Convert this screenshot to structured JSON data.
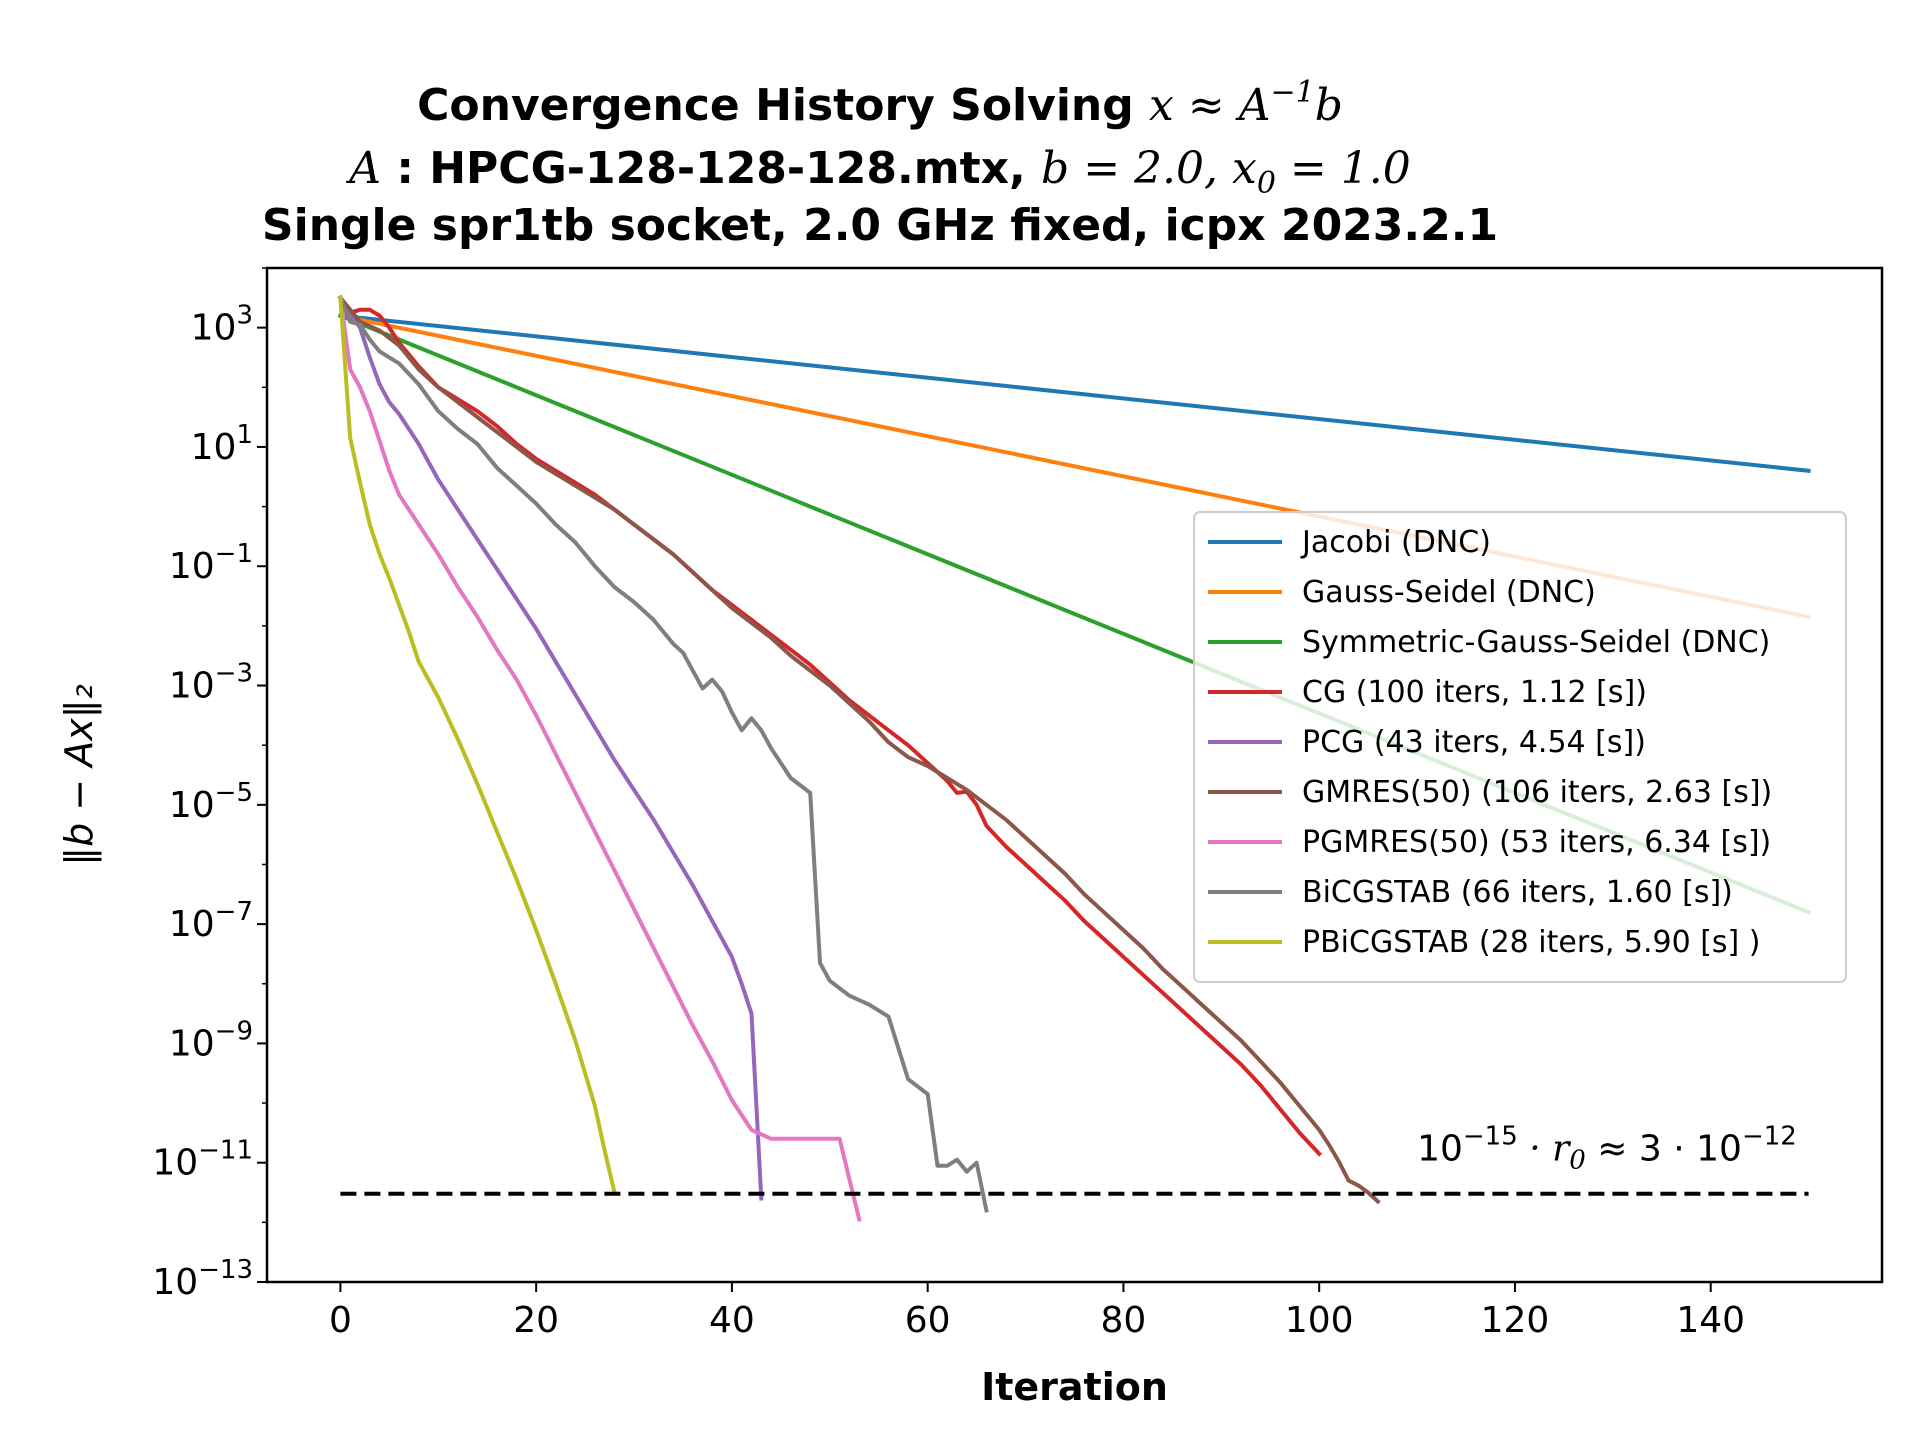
{
  "chart_data": {
    "type": "line",
    "title": {
      "line1_text": "Convergence History Solving ",
      "line1_math": "x ≈ A",
      "line1_sup": "−1",
      "line1_math_end": "b",
      "line2_A": "A",
      "line2_text": " : HPCG-128-128-128.mtx, ",
      "line2_b": "b",
      "line2_bval": " = 2.0, ",
      "line2_x": "x",
      "line2_xsub": "0",
      "line2_xval": " = 1.0",
      "line3": "Single spr1tb socket, 2.0 GHz fixed, icpx 2023.2.1"
    },
    "xlabel": "Iteration",
    "ylabel": "‖b − Ax‖₂",
    "xlim": [
      -7.5,
      157.5
    ],
    "ylim_log10": [
      -13,
      4
    ],
    "yscale": "log",
    "xticks": [
      0,
      20,
      40,
      60,
      80,
      100,
      120,
      140
    ],
    "yticks_exp": [
      3,
      1,
      -1,
      -3,
      -5,
      -7,
      -9,
      -11,
      -13
    ],
    "legend_position": "center-right",
    "annotation": {
      "base": "10",
      "exp": "−15",
      "mid": " · r",
      "sub": "0",
      "rest": " ≈ 3 · 10",
      "exp2": "−12",
      "x": 110,
      "log10y": -11
    },
    "threshold": {
      "log10y": -11.52,
      "x_start": 0,
      "x_end": 150,
      "color": "#000000",
      "style": "dashed"
    },
    "series": [
      {
        "name": "Jacobi (DNC)",
        "color": "#1f77b4",
        "points": [
          [
            0,
            3.2
          ],
          [
            150,
            0.6
          ]
        ]
      },
      {
        "name": "Gauss-Seidel (DNC)",
        "color": "#ff7f0e",
        "points": [
          [
            0,
            3.2
          ],
          [
            150,
            -1.85
          ]
        ]
      },
      {
        "name": "Symmetric-Gauss-Seidel (DNC)",
        "color": "#2ca02c",
        "points": [
          [
            0,
            3.2
          ],
          [
            150,
            -6.8
          ]
        ]
      },
      {
        "name": "CG (100 iters, 1.12 [s])",
        "color": "#d62728",
        "points": [
          [
            0,
            3.5
          ],
          [
            1,
            3.25
          ],
          [
            2,
            3.3
          ],
          [
            3,
            3.3
          ],
          [
            4,
            3.2
          ],
          [
            5,
            3.0
          ],
          [
            6,
            2.75
          ],
          [
            8,
            2.35
          ],
          [
            10,
            2.0
          ],
          [
            12,
            1.8
          ],
          [
            14,
            1.6
          ],
          [
            16,
            1.35
          ],
          [
            18,
            1.05
          ],
          [
            20,
            0.8
          ],
          [
            22,
            0.6
          ],
          [
            24,
            0.4
          ],
          [
            26,
            0.2
          ],
          [
            28,
            -0.05
          ],
          [
            30,
            -0.3
          ],
          [
            32,
            -0.55
          ],
          [
            34,
            -0.8
          ],
          [
            36,
            -1.1
          ],
          [
            38,
            -1.4
          ],
          [
            40,
            -1.65
          ],
          [
            42,
            -1.9
          ],
          [
            44,
            -2.15
          ],
          [
            46,
            -2.4
          ],
          [
            48,
            -2.65
          ],
          [
            50,
            -2.95
          ],
          [
            52,
            -3.25
          ],
          [
            54,
            -3.5
          ],
          [
            56,
            -3.75
          ],
          [
            58,
            -4.0
          ],
          [
            60,
            -4.3
          ],
          [
            62,
            -4.6
          ],
          [
            63,
            -4.8
          ],
          [
            64,
            -4.78
          ],
          [
            65,
            -5.0
          ],
          [
            66,
            -5.35
          ],
          [
            68,
            -5.7
          ],
          [
            70,
            -6.0
          ],
          [
            72,
            -6.3
          ],
          [
            74,
            -6.6
          ],
          [
            76,
            -6.95
          ],
          [
            78,
            -7.25
          ],
          [
            80,
            -7.55
          ],
          [
            82,
            -7.85
          ],
          [
            84,
            -8.15
          ],
          [
            86,
            -8.45
          ],
          [
            88,
            -8.75
          ],
          [
            90,
            -9.05
          ],
          [
            92,
            -9.35
          ],
          [
            94,
            -9.7
          ],
          [
            96,
            -10.1
          ],
          [
            98,
            -10.5
          ],
          [
            100,
            -10.85
          ]
        ]
      },
      {
        "name": "PCG (43 iters, 4.54 [s])",
        "color": "#9467bd",
        "points": [
          [
            0,
            3.5
          ],
          [
            1,
            3.25
          ],
          [
            2,
            3.0
          ],
          [
            3,
            2.5
          ],
          [
            4,
            2.05
          ],
          [
            5,
            1.75
          ],
          [
            6,
            1.55
          ],
          [
            7,
            1.3
          ],
          [
            8,
            1.05
          ],
          [
            9,
            0.75
          ],
          [
            10,
            0.45
          ],
          [
            12,
            -0.05
          ],
          [
            14,
            -0.55
          ],
          [
            16,
            -1.05
          ],
          [
            18,
            -1.55
          ],
          [
            20,
            -2.05
          ],
          [
            22,
            -2.6
          ],
          [
            24,
            -3.15
          ],
          [
            26,
            -3.7
          ],
          [
            28,
            -4.25
          ],
          [
            30,
            -4.75
          ],
          [
            32,
            -5.25
          ],
          [
            34,
            -5.8
          ],
          [
            36,
            -6.35
          ],
          [
            38,
            -6.95
          ],
          [
            40,
            -7.55
          ],
          [
            41,
            -8.0
          ],
          [
            42,
            -8.5
          ],
          [
            43,
            -11.6
          ]
        ]
      },
      {
        "name": "GMRES(50) (106 iters, 2.63 [s])",
        "color": "#8c564b",
        "points": [
          [
            0,
            3.5
          ],
          [
            2,
            3.1
          ],
          [
            4,
            2.95
          ],
          [
            6,
            2.7
          ],
          [
            8,
            2.3
          ],
          [
            10,
            2.0
          ],
          [
            12,
            1.75
          ],
          [
            14,
            1.5
          ],
          [
            16,
            1.25
          ],
          [
            18,
            1.0
          ],
          [
            20,
            0.75
          ],
          [
            22,
            0.55
          ],
          [
            24,
            0.35
          ],
          [
            26,
            0.15
          ],
          [
            28,
            -0.05
          ],
          [
            30,
            -0.3
          ],
          [
            32,
            -0.55
          ],
          [
            34,
            -0.8
          ],
          [
            36,
            -1.1
          ],
          [
            38,
            -1.4
          ],
          [
            40,
            -1.7
          ],
          [
            42,
            -1.95
          ],
          [
            44,
            -2.2
          ],
          [
            46,
            -2.5
          ],
          [
            48,
            -2.75
          ],
          [
            50,
            -3.0
          ],
          [
            52,
            -3.3
          ],
          [
            54,
            -3.6
          ],
          [
            56,
            -3.95
          ],
          [
            58,
            -4.2
          ],
          [
            60,
            -4.35
          ],
          [
            62,
            -4.55
          ],
          [
            64,
            -4.75
          ],
          [
            66,
            -5.0
          ],
          [
            68,
            -5.25
          ],
          [
            70,
            -5.55
          ],
          [
            72,
            -5.85
          ],
          [
            74,
            -6.15
          ],
          [
            76,
            -6.5
          ],
          [
            78,
            -6.8
          ],
          [
            80,
            -7.1
          ],
          [
            82,
            -7.4
          ],
          [
            84,
            -7.75
          ],
          [
            86,
            -8.05
          ],
          [
            88,
            -8.35
          ],
          [
            90,
            -8.65
          ],
          [
            92,
            -8.95
          ],
          [
            94,
            -9.3
          ],
          [
            96,
            -9.65
          ],
          [
            98,
            -10.05
          ],
          [
            100,
            -10.45
          ],
          [
            101,
            -10.7
          ],
          [
            102,
            -10.98
          ],
          [
            103,
            -11.3
          ],
          [
            104,
            -11.38
          ],
          [
            105,
            -11.5
          ],
          [
            106,
            -11.65
          ]
        ]
      },
      {
        "name": "PGMRES(50) (53 iters, 6.34 [s])",
        "color": "#e377c2",
        "points": [
          [
            0,
            3.5
          ],
          [
            1,
            2.3
          ],
          [
            2,
            2.0
          ],
          [
            3,
            1.6
          ],
          [
            4,
            1.1
          ],
          [
            5,
            0.6
          ],
          [
            6,
            0.2
          ],
          [
            8,
            -0.3
          ],
          [
            10,
            -0.8
          ],
          [
            12,
            -1.35
          ],
          [
            14,
            -1.85
          ],
          [
            16,
            -2.4
          ],
          [
            18,
            -2.9
          ],
          [
            20,
            -3.5
          ],
          [
            22,
            -4.15
          ],
          [
            24,
            -4.8
          ],
          [
            26,
            -5.45
          ],
          [
            28,
            -6.1
          ],
          [
            30,
            -6.75
          ],
          [
            32,
            -7.4
          ],
          [
            34,
            -8.05
          ],
          [
            36,
            -8.7
          ],
          [
            38,
            -9.3
          ],
          [
            40,
            -9.95
          ],
          [
            42,
            -10.45
          ],
          [
            44,
            -10.6
          ],
          [
            46,
            -10.6
          ],
          [
            48,
            -10.6
          ],
          [
            50,
            -10.6
          ],
          [
            51,
            -10.6
          ],
          [
            53,
            -11.95
          ]
        ]
      },
      {
        "name": "BiCGSTAB (66 iters, 1.60 [s])",
        "color": "#7f7f7f",
        "points": [
          [
            0,
            3.5
          ],
          [
            1,
            3.1
          ],
          [
            2,
            3.05
          ],
          [
            3,
            2.8
          ],
          [
            4,
            2.6
          ],
          [
            6,
            2.4
          ],
          [
            8,
            2.05
          ],
          [
            10,
            1.6
          ],
          [
            12,
            1.3
          ],
          [
            14,
            1.05
          ],
          [
            16,
            0.65
          ],
          [
            18,
            0.35
          ],
          [
            20,
            0.05
          ],
          [
            22,
            -0.3
          ],
          [
            24,
            -0.6
          ],
          [
            26,
            -1.0
          ],
          [
            28,
            -1.35
          ],
          [
            30,
            -1.6
          ],
          [
            32,
            -1.9
          ],
          [
            34,
            -2.3
          ],
          [
            35,
            -2.45
          ],
          [
            36,
            -2.75
          ],
          [
            37,
            -3.05
          ],
          [
            38,
            -2.9
          ],
          [
            39,
            -3.1
          ],
          [
            40,
            -3.45
          ],
          [
            41,
            -3.75
          ],
          [
            42,
            -3.55
          ],
          [
            43,
            -3.75
          ],
          [
            44,
            -4.05
          ],
          [
            46,
            -4.55
          ],
          [
            48,
            -4.8
          ],
          [
            49,
            -7.65
          ],
          [
            50,
            -7.95
          ],
          [
            52,
            -8.2
          ],
          [
            54,
            -8.35
          ],
          [
            56,
            -8.55
          ],
          [
            58,
            -9.6
          ],
          [
            60,
            -9.85
          ],
          [
            61,
            -11.05
          ],
          [
            62,
            -11.05
          ],
          [
            63,
            -10.95
          ],
          [
            64,
            -11.15
          ],
          [
            65,
            -11.0
          ],
          [
            66,
            -11.8
          ]
        ]
      },
      {
        "name": "PBiCGSTAB (28 iters, 5.90 [s] )",
        "color": "#bcbd22",
        "points": [
          [
            0,
            3.5
          ],
          [
            1,
            1.15
          ],
          [
            2,
            0.4
          ],
          [
            3,
            -0.3
          ],
          [
            4,
            -0.8
          ],
          [
            5,
            -1.2
          ],
          [
            6,
            -1.65
          ],
          [
            7,
            -2.1
          ],
          [
            8,
            -2.6
          ],
          [
            10,
            -3.2
          ],
          [
            12,
            -3.9
          ],
          [
            14,
            -4.65
          ],
          [
            16,
            -5.45
          ],
          [
            18,
            -6.25
          ],
          [
            20,
            -7.1
          ],
          [
            22,
            -8.0
          ],
          [
            24,
            -8.95
          ],
          [
            26,
            -10.05
          ],
          [
            27,
            -10.8
          ],
          [
            28,
            -11.5
          ]
        ]
      }
    ]
  }
}
